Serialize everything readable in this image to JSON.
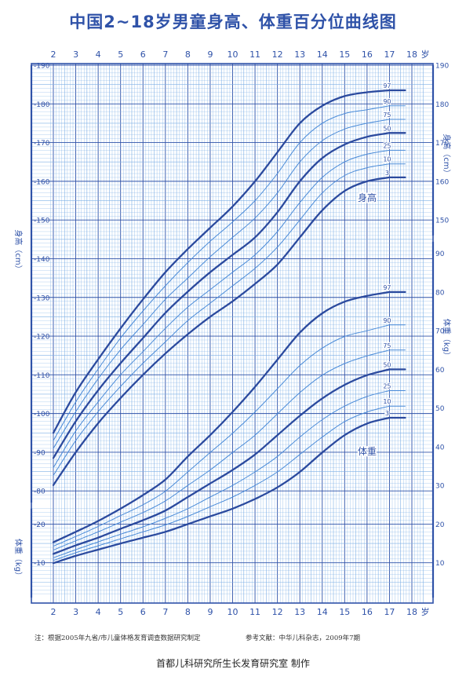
{
  "title": "中国2~18岁男童身高、体重百分位曲线图",
  "note_left": "注：根据2005年九省/市儿童体格发育调查数据研究制定",
  "note_right": "参考文献：中华儿科杂志，2009年7期",
  "maker": "首都儿科研究所生长发育研究室  制作",
  "colors": {
    "heavy": "#2b4a9e",
    "light": "#4a8bd8",
    "grid": "#7fb0e6",
    "axis": "#2f52a8"
  },
  "chart_data": {
    "type": "line",
    "x_unit": "岁",
    "x_ticks": [
      2,
      3,
      4,
      5,
      6,
      7,
      8,
      9,
      10,
      11,
      12,
      13,
      14,
      15,
      16,
      17,
      18
    ],
    "percentiles": [
      "3",
      "10",
      "25",
      "50",
      "75",
      "90",
      "97"
    ],
    "height": {
      "label": "身高",
      "axis_title": "身高（cm）",
      "ylim": [
        77,
        190
      ],
      "ticks": [
        80,
        90,
        100,
        110,
        120,
        130,
        140,
        150,
        160,
        170,
        180,
        190
      ],
      "x": [
        2,
        3,
        4,
        5,
        6,
        7,
        8,
        9,
        10,
        11,
        12,
        13,
        14,
        15,
        16,
        17
      ],
      "series": [
        {
          "name": "3",
          "values": [
            81.5,
            90,
            97.5,
            104,
            110,
            115.5,
            120.5,
            125,
            129,
            133.5,
            138.5,
            145.5,
            152.5,
            157.5,
            160,
            161
          ]
        },
        {
          "name": "10",
          "values": [
            84,
            93,
            100.5,
            107,
            113,
            118.5,
            124,
            128.5,
            133,
            137.5,
            143,
            150,
            157,
            161.5,
            163.5,
            164.5
          ]
        },
        {
          "name": "25",
          "values": [
            86,
            95.5,
            103,
            110,
            116,
            122,
            127.5,
            132,
            136.5,
            141,
            147,
            154.5,
            161,
            165,
            167,
            168
          ]
        },
        {
          "name": "50",
          "values": [
            88.5,
            98,
            106,
            113,
            119.5,
            126,
            131.5,
            136.5,
            141,
            145.5,
            152,
            160,
            166,
            169.5,
            171.5,
            172.5
          ]
        },
        {
          "name": "75",
          "values": [
            91,
            100.5,
            109,
            116.5,
            123,
            129.5,
            135,
            140.5,
            145.5,
            150.5,
            157,
            165,
            170.5,
            173.5,
            175,
            176
          ]
        },
        {
          "name": "90",
          "values": [
            93,
            103,
            111.5,
            119.5,
            126.5,
            133,
            139,
            144.5,
            149.5,
            155,
            162,
            170,
            175,
            177.5,
            178.5,
            179.5
          ]
        },
        {
          "name": "97",
          "values": [
            95,
            105.5,
            114,
            122,
            129.5,
            136.5,
            142.5,
            148,
            153.5,
            160,
            167.5,
            175,
            179.5,
            182,
            183,
            183.5
          ]
        }
      ]
    },
    "weight": {
      "label": "体重",
      "axis_title": "体重（kg）",
      "ylim": [
        0,
        95
      ],
      "ticks": [
        10,
        20,
        30,
        40,
        50,
        60,
        70,
        80,
        90
      ],
      "right_ticks": [
        10,
        20,
        30,
        40,
        50,
        60,
        70,
        80,
        90
      ],
      "left_ticks": [
        10,
        20
      ],
      "x": [
        2,
        3,
        4,
        5,
        6,
        7,
        8,
        9,
        10,
        11,
        12,
        13,
        14,
        15,
        16,
        17
      ],
      "series": [
        {
          "name": "3",
          "values": [
            9.9,
            11.8,
            13.4,
            15,
            16.5,
            18,
            20,
            22,
            24,
            26.5,
            29.5,
            33.5,
            38.5,
            43,
            46,
            47.5
          ]
        },
        {
          "name": "10",
          "values": [
            10.6,
            12.6,
            14.4,
            16.2,
            18,
            19.8,
            22,
            24.5,
            27,
            30,
            33.5,
            38,
            42.5,
            46.5,
            49,
            50.5
          ]
        },
        {
          "name": "25",
          "values": [
            11.3,
            13.4,
            15.4,
            17.4,
            19.3,
            21.5,
            24,
            27,
            30,
            33.5,
            37.5,
            42.5,
            47,
            50.5,
            53,
            54.5
          ]
        },
        {
          "name": "50",
          "values": [
            12.3,
            14.5,
            16.5,
            18.8,
            21,
            23.5,
            27,
            30.5,
            34,
            38,
            43,
            48,
            52.5,
            56,
            58.5,
            60
          ]
        },
        {
          "name": "75",
          "values": [
            13.3,
            15.7,
            18,
            20.5,
            23,
            26,
            30,
            34,
            38.5,
            43,
            48.5,
            54,
            58.5,
            61.5,
            63.5,
            65
          ]
        },
        {
          "name": "90",
          "values": [
            14.3,
            16.8,
            19.4,
            22.2,
            25,
            28.5,
            33.5,
            38.5,
            43.5,
            49,
            55,
            61,
            65.5,
            68.5,
            70,
            71.5
          ]
        },
        {
          "name": "97",
          "values": [
            15.3,
            18,
            20.8,
            24,
            27.5,
            31.5,
            37.5,
            43,
            49,
            55.5,
            62.5,
            69.5,
            74.5,
            77.5,
            79,
            80
          ]
        }
      ]
    }
  }
}
